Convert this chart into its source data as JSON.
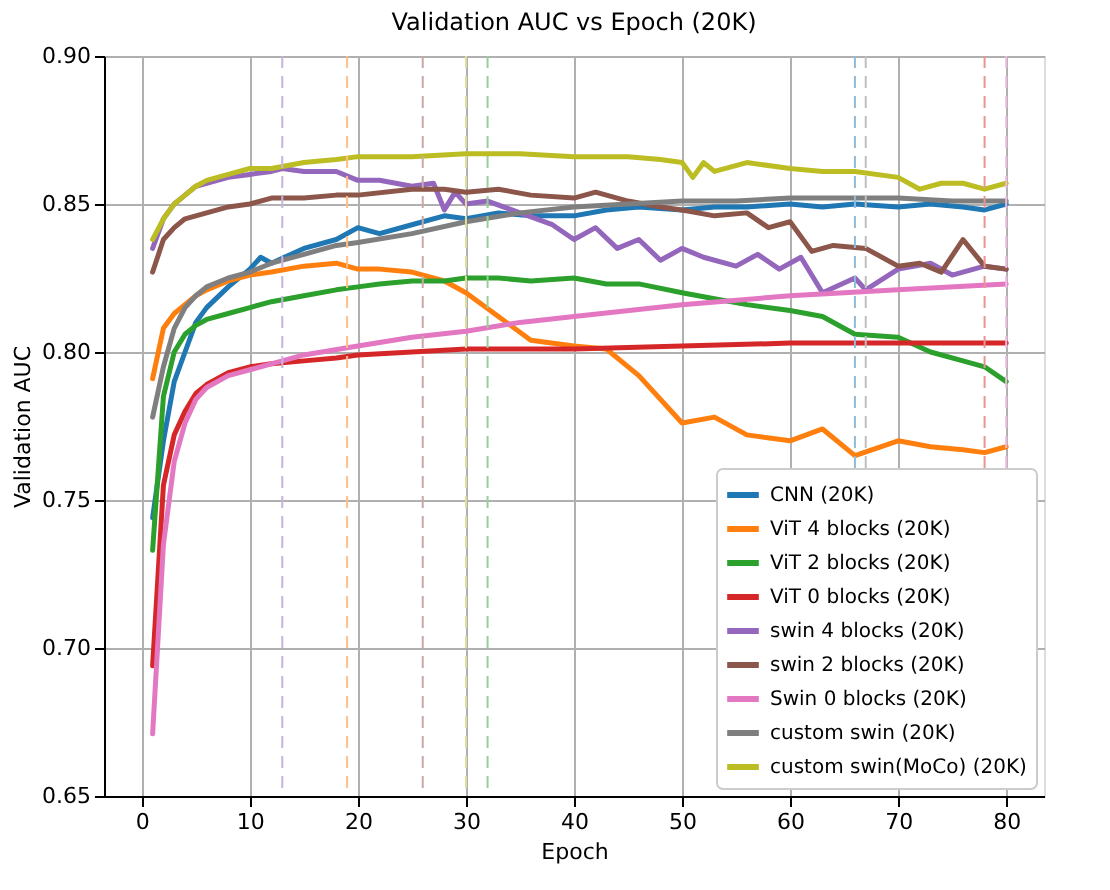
{
  "chart_data": {
    "type": "line",
    "title": "Validation AUC vs Epoch (20K)",
    "xlabel": "Epoch",
    "ylabel": "Validation AUC",
    "xlim": [
      -3.5,
      83.5
    ],
    "xticks": [
      0,
      10,
      20,
      30,
      40,
      50,
      60,
      70,
      80
    ],
    "ylim": [
      0.65,
      0.9
    ],
    "yticks": [
      {
        "value": 0.65,
        "label": "0.65"
      },
      {
        "value": 0.7,
        "label": "0.70"
      },
      {
        "value": 0.75,
        "label": "0.75"
      },
      {
        "value": 0.8,
        "label": "0.80"
      },
      {
        "value": 0.85,
        "label": "0.85"
      },
      {
        "value": 0.9,
        "label": "0.90"
      }
    ],
    "grid": true,
    "legend": "bottom right",
    "line_style": "solid",
    "marker": "none",
    "series": [
      {
        "name": "CNN (20K)",
        "color": "#1f77b4",
        "x": [
          1,
          2,
          3,
          4,
          5,
          6,
          8,
          10,
          11,
          12,
          15,
          18,
          20,
          22,
          25,
          28,
          30,
          33,
          36,
          40,
          43,
          46,
          50,
          53,
          56,
          60,
          63,
          66,
          70,
          73,
          76,
          78,
          80
        ],
        "values": [
          0.744,
          0.77,
          0.79,
          0.8,
          0.81,
          0.815,
          0.822,
          0.828,
          0.832,
          0.83,
          0.835,
          0.838,
          0.842,
          0.84,
          0.843,
          0.846,
          0.845,
          0.847,
          0.846,
          0.846,
          0.848,
          0.849,
          0.848,
          0.849,
          0.849,
          0.85,
          0.849,
          0.85,
          0.849,
          0.85,
          0.849,
          0.848,
          0.85
        ]
      },
      {
        "name": "ViT 4 blocks (20K)",
        "color": "#ff7f0e",
        "x": [
          1,
          2,
          3,
          4,
          5,
          6,
          8,
          10,
          12,
          15,
          18,
          20,
          22,
          25,
          28,
          30,
          33,
          36,
          40,
          43,
          46,
          50,
          53,
          56,
          60,
          63,
          66,
          70,
          73,
          76,
          78,
          80
        ],
        "values": [
          0.791,
          0.808,
          0.813,
          0.816,
          0.819,
          0.821,
          0.824,
          0.826,
          0.827,
          0.829,
          0.83,
          0.828,
          0.828,
          0.827,
          0.824,
          0.82,
          0.812,
          0.804,
          0.802,
          0.801,
          0.792,
          0.776,
          0.778,
          0.772,
          0.77,
          0.774,
          0.765,
          0.77,
          0.768,
          0.767,
          0.766,
          0.768
        ]
      },
      {
        "name": "ViT 2 blocks (20K)",
        "color": "#2ca02c",
        "x": [
          1,
          2,
          3,
          4,
          5,
          6,
          8,
          10,
          12,
          15,
          18,
          20,
          22,
          25,
          28,
          30,
          33,
          36,
          40,
          43,
          46,
          50,
          53,
          56,
          60,
          63,
          66,
          70,
          73,
          76,
          78,
          80
        ],
        "values": [
          0.733,
          0.785,
          0.8,
          0.806,
          0.809,
          0.811,
          0.813,
          0.815,
          0.817,
          0.819,
          0.821,
          0.822,
          0.823,
          0.824,
          0.824,
          0.825,
          0.825,
          0.824,
          0.825,
          0.823,
          0.823,
          0.82,
          0.818,
          0.816,
          0.814,
          0.812,
          0.806,
          0.805,
          0.8,
          0.797,
          0.795,
          0.79
        ]
      },
      {
        "name": "ViT 0 blocks (20K)",
        "color": "#d62728",
        "x": [
          1,
          2,
          3,
          4,
          5,
          6,
          8,
          10,
          12,
          15,
          18,
          20,
          25,
          30,
          40,
          50,
          60,
          70,
          80
        ],
        "values": [
          0.694,
          0.755,
          0.772,
          0.78,
          0.786,
          0.789,
          0.793,
          0.795,
          0.796,
          0.797,
          0.798,
          0.799,
          0.8,
          0.801,
          0.801,
          0.802,
          0.803,
          0.803,
          0.803
        ]
      },
      {
        "name": "swin 4 blocks (20K)",
        "color": "#9467bd",
        "x": [
          1,
          2,
          3,
          4,
          5,
          6,
          8,
          10,
          12,
          13,
          15,
          18,
          20,
          22,
          25,
          27,
          28,
          29,
          30,
          32,
          35,
          38,
          40,
          42,
          44,
          46,
          48,
          50,
          52,
          55,
          57,
          59,
          61,
          63,
          66,
          67,
          70,
          73,
          75,
          78,
          80
        ],
        "values": [
          0.835,
          0.845,
          0.85,
          0.853,
          0.856,
          0.857,
          0.859,
          0.86,
          0.861,
          0.862,
          0.861,
          0.861,
          0.858,
          0.858,
          0.856,
          0.857,
          0.848,
          0.854,
          0.85,
          0.851,
          0.847,
          0.843,
          0.838,
          0.842,
          0.835,
          0.838,
          0.831,
          0.835,
          0.832,
          0.829,
          0.833,
          0.828,
          0.832,
          0.82,
          0.825,
          0.821,
          0.828,
          0.83,
          0.826,
          0.829,
          0.828
        ]
      },
      {
        "name": "swin 2 blocks (20K)",
        "color": "#8c564b",
        "x": [
          1,
          2,
          3,
          4,
          5,
          8,
          10,
          12,
          15,
          18,
          20,
          25,
          28,
          30,
          33,
          36,
          40,
          42,
          45,
          48,
          50,
          53,
          56,
          58,
          60,
          62,
          64,
          67,
          70,
          72,
          74,
          76,
          78,
          80
        ],
        "values": [
          0.827,
          0.838,
          0.842,
          0.845,
          0.846,
          0.849,
          0.85,
          0.852,
          0.852,
          0.853,
          0.853,
          0.855,
          0.855,
          0.854,
          0.855,
          0.853,
          0.852,
          0.854,
          0.851,
          0.849,
          0.848,
          0.846,
          0.847,
          0.842,
          0.844,
          0.834,
          0.836,
          0.835,
          0.829,
          0.83,
          0.827,
          0.838,
          0.829,
          0.828
        ]
      },
      {
        "name": "Swin 0 blocks (20K)",
        "color": "#e377c2",
        "x": [
          1,
          2,
          3,
          4,
          5,
          6,
          8,
          10,
          13,
          15,
          20,
          25,
          30,
          35,
          40,
          50,
          60,
          70,
          80
        ],
        "values": [
          0.671,
          0.735,
          0.763,
          0.776,
          0.784,
          0.788,
          0.792,
          0.794,
          0.797,
          0.799,
          0.802,
          0.805,
          0.807,
          0.81,
          0.812,
          0.816,
          0.819,
          0.821,
          0.823
        ]
      },
      {
        "name": "custom swin (20K)",
        "color": "#7f7f7f",
        "x": [
          1,
          2,
          3,
          4,
          5,
          6,
          8,
          10,
          12,
          15,
          18,
          20,
          25,
          30,
          35,
          40,
          45,
          50,
          55,
          60,
          65,
          70,
          75,
          80
        ],
        "values": [
          0.778,
          0.795,
          0.808,
          0.815,
          0.819,
          0.822,
          0.825,
          0.827,
          0.83,
          0.833,
          0.836,
          0.837,
          0.84,
          0.844,
          0.847,
          0.849,
          0.85,
          0.851,
          0.851,
          0.852,
          0.852,
          0.852,
          0.851,
          0.851
        ]
      },
      {
        "name": "custom swin(MoCo) (20K)",
        "color": "#bcbd22",
        "x": [
          1,
          2,
          3,
          4,
          5,
          6,
          8,
          10,
          12,
          15,
          18,
          20,
          25,
          30,
          35,
          40,
          45,
          48,
          50,
          51,
          52,
          53,
          56,
          60,
          63,
          66,
          70,
          72,
          74,
          76,
          78,
          80
        ],
        "values": [
          0.838,
          0.845,
          0.85,
          0.853,
          0.856,
          0.858,
          0.86,
          0.862,
          0.862,
          0.864,
          0.865,
          0.866,
          0.866,
          0.867,
          0.867,
          0.866,
          0.866,
          0.865,
          0.864,
          0.859,
          0.864,
          0.861,
          0.864,
          0.862,
          0.861,
          0.861,
          0.859,
          0.855,
          0.857,
          0.857,
          0.855,
          0.857
        ]
      }
    ],
    "ref_lines": [
      {
        "axis": "x",
        "value": 13,
        "color": "#c9b3de",
        "line_style": "dashed"
      },
      {
        "axis": "x",
        "value": 19,
        "color": "#ffbf87",
        "line_style": "dashed"
      },
      {
        "axis": "x",
        "value": 26,
        "color": "#c6aaa5",
        "line_style": "dashed"
      },
      {
        "axis": "x",
        "value": 30,
        "color": "#dedea0",
        "line_style": "dashed"
      },
      {
        "axis": "x",
        "value": 32,
        "color": "#96d096",
        "line_style": "dashed"
      },
      {
        "axis": "x",
        "value": 66,
        "color": "#8fbbda",
        "line_style": "dashed"
      },
      {
        "axis": "x",
        "value": 67,
        "color": "#bfbfbf",
        "line_style": "dashed"
      },
      {
        "axis": "x",
        "value": 78,
        "color": "#eb9394",
        "line_style": "dashed"
      },
      {
        "axis": "x",
        "value": 80,
        "color": "#f1bbe1",
        "line_style": "dashed"
      }
    ]
  }
}
